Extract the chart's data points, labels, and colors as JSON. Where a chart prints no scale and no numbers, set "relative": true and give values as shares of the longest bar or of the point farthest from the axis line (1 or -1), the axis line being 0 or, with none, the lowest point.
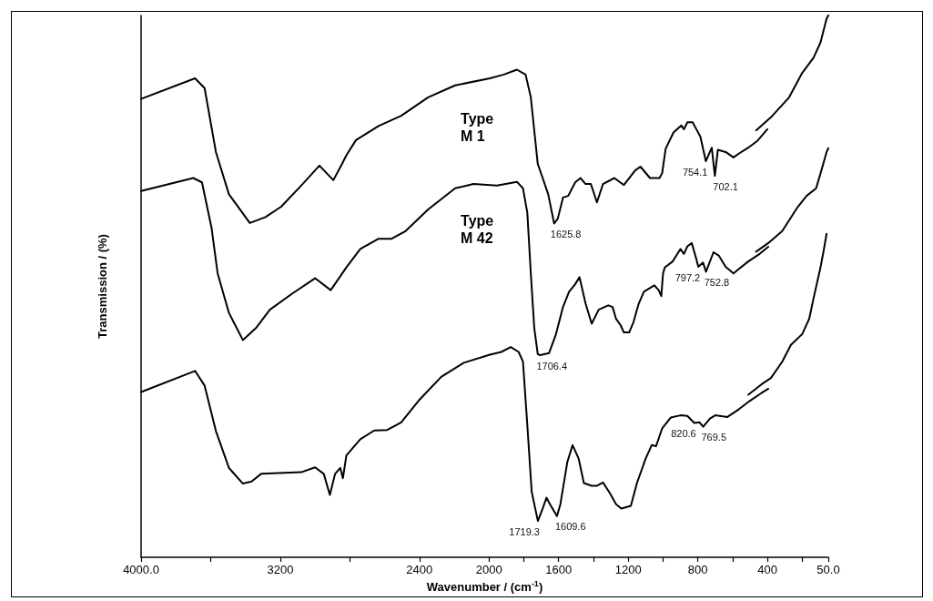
{
  "chart_data": {
    "type": "line",
    "relative": true,
    "xlabel": "Wavenumber / (cm$^{-1}$)",
    "ylabel": "Transmission / (%)",
    "xlim": [
      4000,
      50
    ],
    "xticks": [
      {
        "value": 4000,
        "label": "4000.0"
      },
      {
        "value": 3600,
        "label": null
      },
      3200,
      {
        "value": 2800,
        "label": null
      },
      2400,
      2000,
      {
        "value": 1800,
        "label": null
      },
      1600,
      {
        "value": 1400,
        "label": null
      },
      1200,
      {
        "value": 1000,
        "label": null
      },
      800,
      {
        "value": 600,
        "label": null
      },
      400,
      {
        "value": 200,
        "label": null
      },
      {
        "value": 50,
        "label": "50.0"
      }
    ],
    "tick_labels": "x",
    "line_style": "solid",
    "series": [
      {
        "name": "Type M 1",
        "color": "#000000",
        "x": [
          4000,
          3690,
          3635,
          3570,
          3495,
          3375,
          3285,
          3195,
          3080,
          2975,
          2895,
          2845,
          2820,
          2765,
          2635,
          2505,
          2350,
          2195,
          1995,
          1915,
          1840,
          1790,
          1760,
          1720,
          1695,
          1660,
          1625.8,
          1605,
          1575,
          1545,
          1505,
          1475,
          1445,
          1415,
          1380,
          1345,
          1280,
          1225,
          1160,
          1130,
          1075,
          1020,
          1005,
          985,
          940,
          895,
          880,
          860,
          830,
          785,
          754.1,
          720,
          702.1,
          685,
          640,
          595,
          565,
          510,
          460,
          400
        ],
        "values": [
          0.846,
          0.884,
          0.866,
          0.748,
          0.67,
          0.617,
          0.628,
          0.647,
          0.686,
          0.723,
          0.696,
          0.726,
          0.742,
          0.77,
          0.796,
          0.815,
          0.849,
          0.871,
          0.884,
          0.891,
          0.9,
          0.891,
          0.849,
          0.726,
          0.703,
          0.67,
          0.616,
          0.625,
          0.664,
          0.667,
          0.692,
          0.7,
          0.689,
          0.689,
          0.655,
          0.689,
          0.7,
          0.687,
          0.714,
          0.721,
          0.7,
          0.7,
          0.709,
          0.754,
          0.784,
          0.797,
          0.79,
          0.803,
          0.803,
          0.776,
          0.731,
          0.756,
          0.704,
          0.752,
          0.748,
          0.738,
          0.745,
          0.756,
          0.768,
          0.79
        ]
      },
      {
        "color": "#000000",
        "x": [
          465,
          380,
          275,
          200,
          135,
          95,
          60,
          50
        ],
        "values": [
          0.788,
          0.812,
          0.849,
          0.894,
          0.922,
          0.95,
          0.994,
          1.0
        ]
      },
      {
        "name": "Type M 42",
        "color": "#000000",
        "x": [
          4000,
          3700,
          3650,
          3595,
          3560,
          3495,
          3415,
          3340,
          3260,
          3130,
          3000,
          2910,
          2820,
          2740,
          2635,
          2560,
          2480,
          2350,
          2195,
          2090,
          1955,
          1840,
          1805,
          1780,
          1760,
          1740,
          1720,
          1706.4,
          1655,
          1615,
          1575,
          1540,
          1505,
          1480,
          1445,
          1410,
          1370,
          1315,
          1290,
          1270,
          1245,
          1225,
          1195,
          1170,
          1140,
          1110,
          1050,
          1025,
          1010,
          1000,
          990,
          945,
          900,
          880,
          860,
          835,
          810,
          797.2,
          770,
          752.8,
          710,
          680,
          640,
          595,
          565,
          510,
          445,
          395
        ],
        "values": [
          0.676,
          0.7,
          0.692,
          0.608,
          0.524,
          0.451,
          0.401,
          0.423,
          0.457,
          0.487,
          0.515,
          0.493,
          0.535,
          0.569,
          0.588,
          0.588,
          0.602,
          0.642,
          0.681,
          0.689,
          0.686,
          0.693,
          0.681,
          0.636,
          0.524,
          0.423,
          0.375,
          0.373,
          0.377,
          0.412,
          0.462,
          0.49,
          0.504,
          0.517,
          0.468,
          0.431,
          0.457,
          0.465,
          0.462,
          0.44,
          0.429,
          0.415,
          0.415,
          0.434,
          0.468,
          0.49,
          0.502,
          0.493,
          0.482,
          0.524,
          0.535,
          0.546,
          0.569,
          0.56,
          0.574,
          0.58,
          0.552,
          0.536,
          0.544,
          0.527,
          0.563,
          0.557,
          0.536,
          0.524,
          0.532,
          0.546,
          0.56,
          0.573
        ]
      },
      {
        "color": "#000000",
        "x": [
          465,
          395,
          315,
          225,
          175,
          120,
          90,
          60,
          50
        ],
        "values": [
          0.564,
          0.58,
          0.602,
          0.647,
          0.667,
          0.681,
          0.714,
          0.748,
          0.755
        ]
      },
      {
        "color": "#000000",
        "x": [
          4000,
          3690,
          3635,
          3570,
          3495,
          3415,
          3365,
          3310,
          3080,
          3000,
          2950,
          2915,
          2885,
          2855,
          2840,
          2820,
          2740,
          2660,
          2585,
          2505,
          2405,
          2275,
          2145,
          1995,
          1930,
          1875,
          1830,
          1805,
          1780,
          1755,
          1719.3,
          1695,
          1670,
          1650,
          1609.6,
          1590,
          1550,
          1520,
          1485,
          1455,
          1410,
          1380,
          1345,
          1305,
          1270,
          1240,
          1185,
          1150,
          1100,
          1065,
          1040,
          1005,
          955,
          900,
          860,
          820.6,
          790,
          769.5,
          730,
          700,
          630,
          565,
          500,
          435,
          395
        ],
        "values": [
          0.305,
          0.344,
          0.317,
          0.233,
          0.165,
          0.136,
          0.14,
          0.154,
          0.157,
          0.166,
          0.154,
          0.115,
          0.154,
          0.165,
          0.146,
          0.188,
          0.218,
          0.234,
          0.235,
          0.249,
          0.289,
          0.333,
          0.359,
          0.374,
          0.379,
          0.388,
          0.379,
          0.361,
          0.244,
          0.121,
          0.067,
          0.087,
          0.11,
          0.098,
          0.076,
          0.098,
          0.176,
          0.207,
          0.182,
          0.137,
          0.132,
          0.132,
          0.138,
          0.118,
          0.098,
          0.09,
          0.095,
          0.137,
          0.182,
          0.207,
          0.205,
          0.238,
          0.258,
          0.262,
          0.261,
          0.248,
          0.249,
          0.241,
          0.256,
          0.262,
          0.259,
          0.273,
          0.289,
          0.303,
          0.311
        ]
      },
      {
        "color": "#000000",
        "x": [
          510,
          435,
          380,
          315,
          265,
          200,
          160,
          135,
          95,
          75,
          60
        ],
        "values": [
          0.3,
          0.319,
          0.331,
          0.361,
          0.392,
          0.412,
          0.44,
          0.478,
          0.535,
          0.569,
          0.597
        ]
      }
    ],
    "annotations": [
      {
        "text": "1625.8",
        "x": 1625.8,
        "y": 0.616
      },
      {
        "text": "754.1",
        "x": 754.1,
        "y": 0.731
      },
      {
        "text": "702.1",
        "x": 702.1,
        "y": 0.704
      },
      {
        "text": "1706.4",
        "x": 1706.4,
        "y": 0.373
      },
      {
        "text": "797.2",
        "x": 797.2,
        "y": 0.536
      },
      {
        "text": "752.8",
        "x": 752.8,
        "y": 0.527
      },
      {
        "text": "1719.3",
        "x": 1719.3,
        "y": 0.067
      },
      {
        "text": "1609.6",
        "x": 1609.6,
        "y": 0.076
      },
      {
        "text": "820.6",
        "x": 820.6,
        "y": 0.248
      },
      {
        "text": "769.5",
        "x": 769.5,
        "y": 0.241
      }
    ]
  }
}
